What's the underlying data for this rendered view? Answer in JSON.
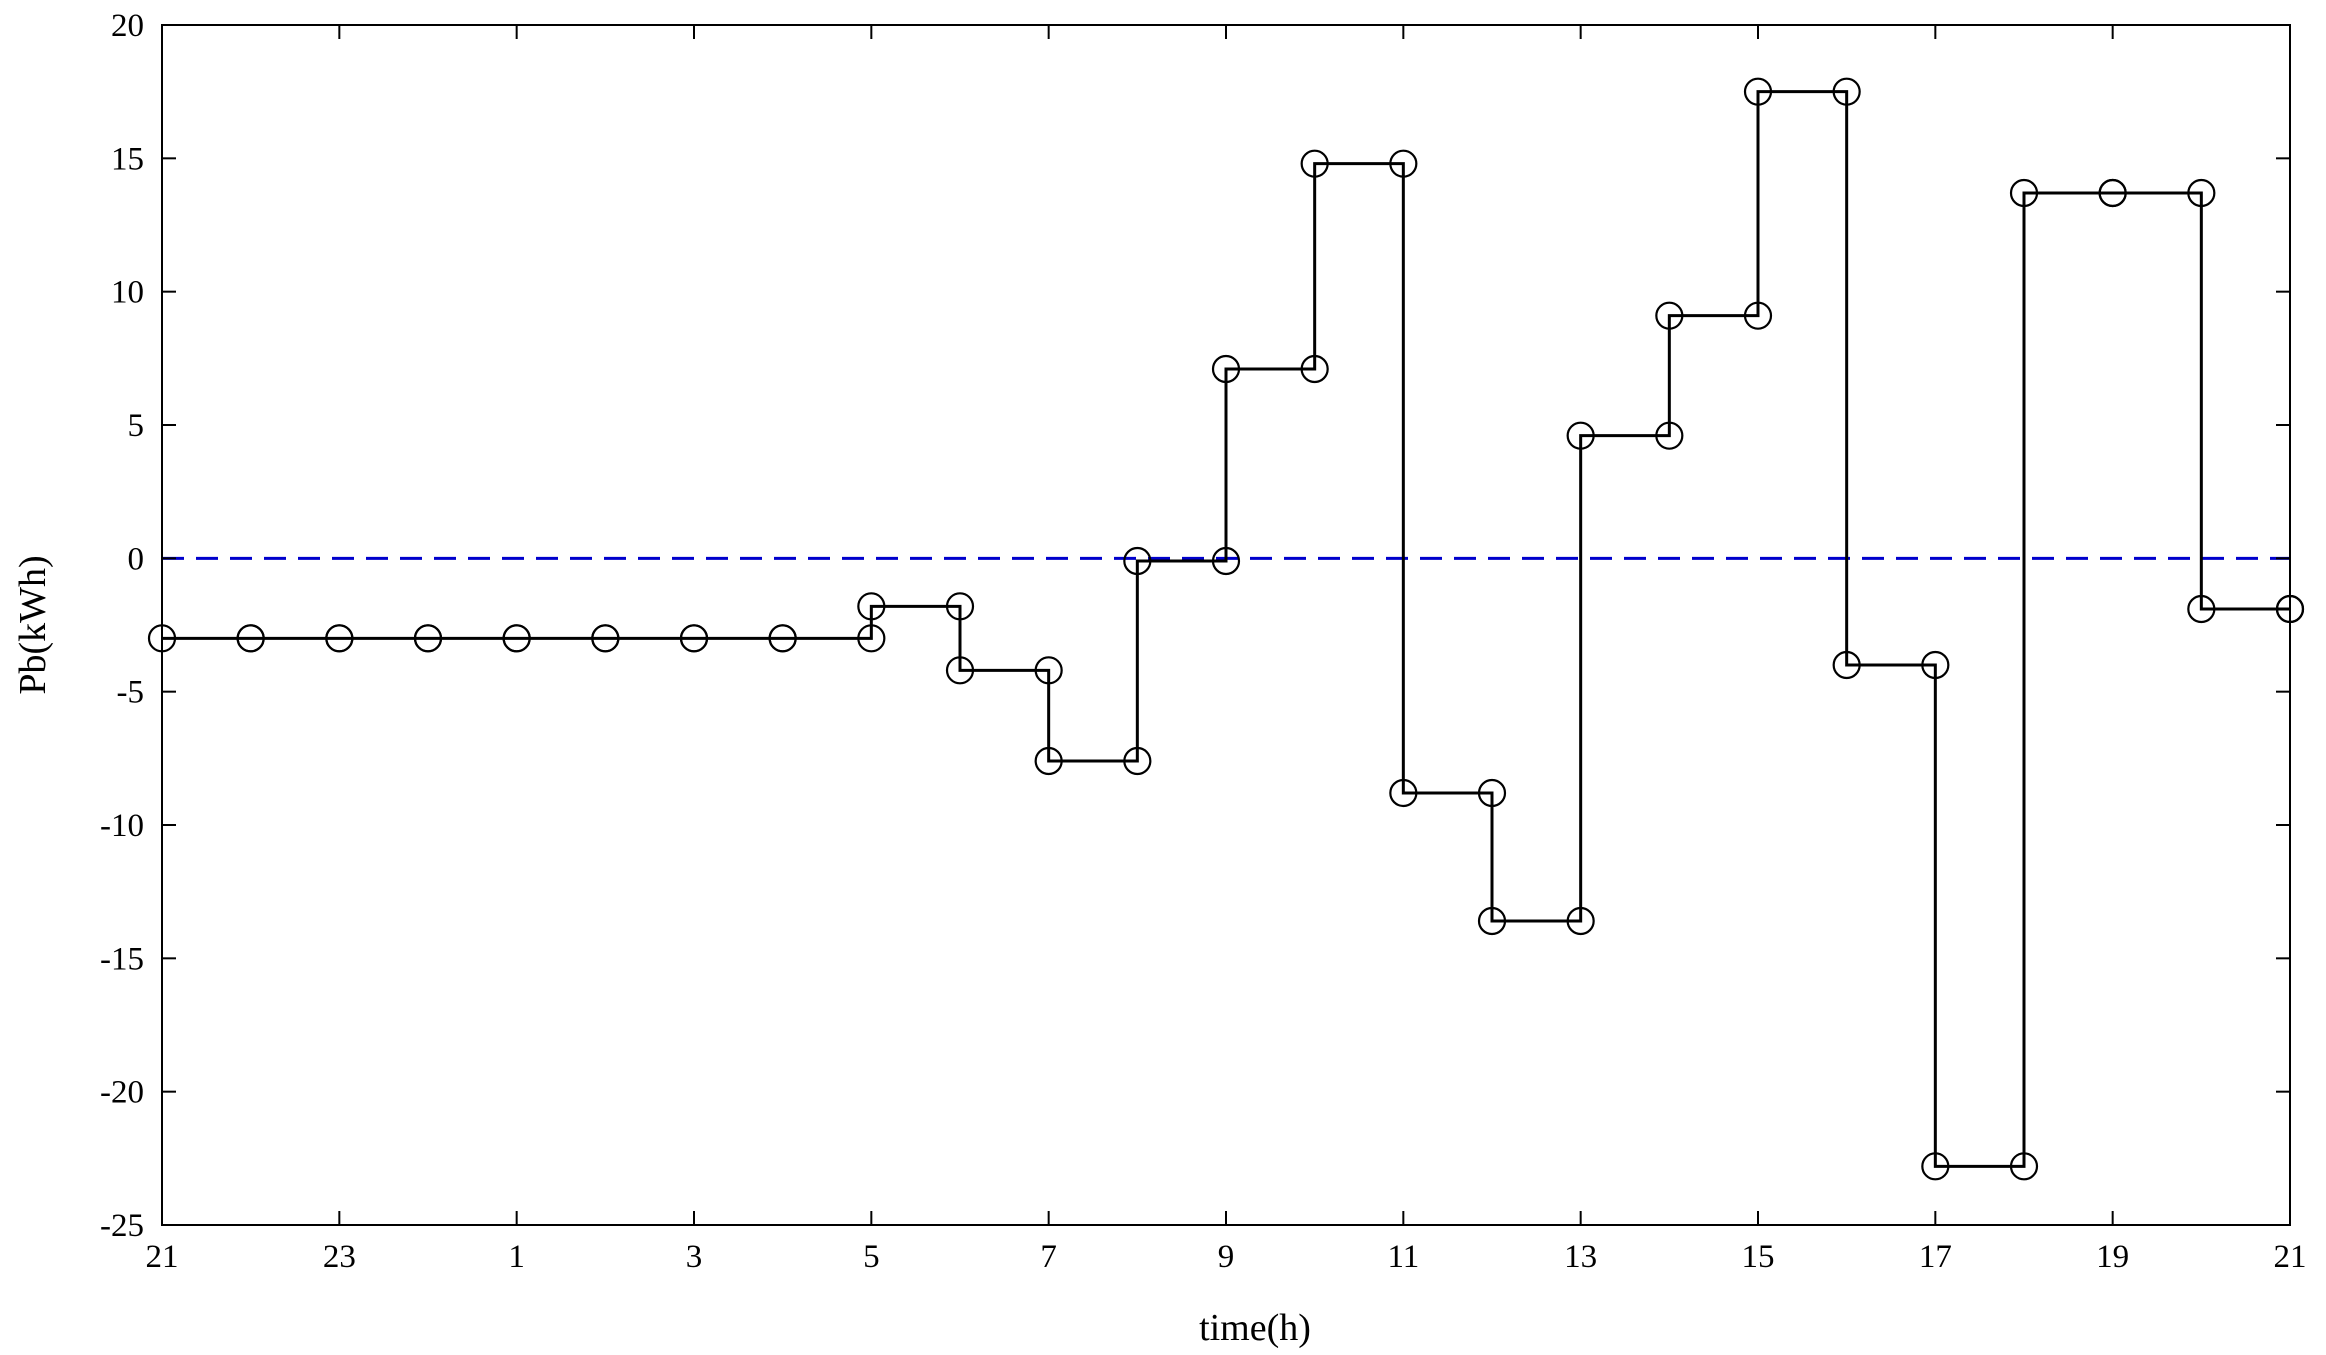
{
  "chart_data": {
    "type": "line",
    "step": true,
    "xlabel": "time(h)",
    "ylabel": "Pb(kWh)",
    "x_tick_labels": [
      "21",
      "23",
      "1",
      "3",
      "5",
      "7",
      "9",
      "11",
      "13",
      "15",
      "17",
      "19",
      "21"
    ],
    "ylim": [
      -25,
      20
    ],
    "y_ticks": [
      -25,
      -20,
      -15,
      -10,
      -5,
      0,
      5,
      10,
      15,
      20
    ],
    "grid": false,
    "reference_line": {
      "y": 0,
      "color": "#0000cc",
      "style": "dashed"
    },
    "series": [
      {
        "color": "#000000",
        "marker": "open-circle",
        "x": [
          0,
          1,
          2,
          3,
          4,
          5,
          6,
          7,
          8,
          9,
          10,
          11,
          12,
          13,
          14,
          15,
          16,
          17,
          18,
          19,
          20,
          21,
          22,
          23,
          24
        ],
        "values": [
          -3,
          -3,
          -3,
          -3,
          -3,
          -3,
          -3,
          -3,
          -1.8,
          -4.2,
          -7.6,
          -0.1,
          7.1,
          14.8,
          -8.8,
          -13.6,
          4.6,
          9.1,
          17.5,
          -4,
          -22.8,
          13.7,
          13.7,
          -1.9,
          -1.9
        ]
      }
    ]
  }
}
